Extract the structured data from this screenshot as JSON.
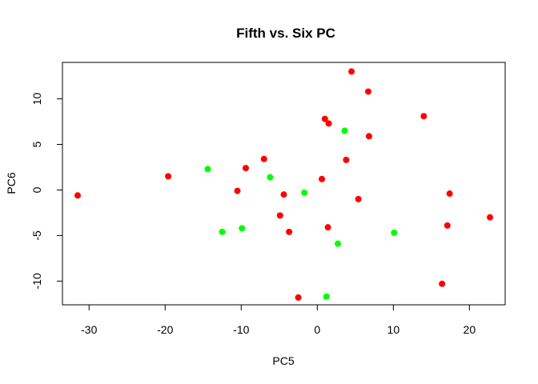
{
  "chart_data": {
    "type": "scatter",
    "title": "Fifth vs. Six PC",
    "xlabel": "PC5",
    "ylabel": "PC6",
    "xlim": [
      -33.5,
      24.7
    ],
    "ylim": [
      -12.6,
      14.0
    ],
    "xticks": [
      -30,
      -20,
      -10,
      0,
      10,
      20
    ],
    "yticks": [
      -10,
      -5,
      0,
      5,
      10
    ],
    "grid": false,
    "legend": "none",
    "colors": {
      "red": "#ff0000",
      "green": "#00ff00"
    },
    "series": [
      {
        "color": "red",
        "points": [
          [
            -31.5,
            -0.6
          ],
          [
            -19.6,
            1.5
          ],
          [
            -10.5,
            -0.1
          ],
          [
            -9.4,
            2.4
          ],
          [
            -7.0,
            3.4
          ],
          [
            -4.4,
            -0.5
          ],
          [
            -4.9,
            -2.8
          ],
          [
            -3.7,
            -4.6
          ],
          [
            -2.5,
            -11.8
          ],
          [
            0.6,
            1.2
          ],
          [
            1.0,
            7.8
          ],
          [
            1.5,
            7.3
          ],
          [
            1.4,
            -4.1
          ],
          [
            3.8,
            3.3
          ],
          [
            4.5,
            13.0
          ],
          [
            5.4,
            -1.0
          ],
          [
            6.7,
            10.8
          ],
          [
            6.8,
            5.9
          ],
          [
            14.0,
            8.1
          ],
          [
            16.4,
            -10.3
          ],
          [
            17.1,
            -3.9
          ],
          [
            17.4,
            -0.4
          ],
          [
            22.7,
            -3.0
          ]
        ]
      },
      {
        "color": "green",
        "points": [
          [
            -14.4,
            2.3
          ],
          [
            -12.5,
            -4.6
          ],
          [
            -9.9,
            -4.2
          ],
          [
            -6.2,
            1.4
          ],
          [
            -1.7,
            -0.3
          ],
          [
            1.2,
            -11.7
          ],
          [
            2.7,
            -5.9
          ],
          [
            3.6,
            6.5
          ],
          [
            10.1,
            -4.7
          ]
        ]
      }
    ]
  }
}
